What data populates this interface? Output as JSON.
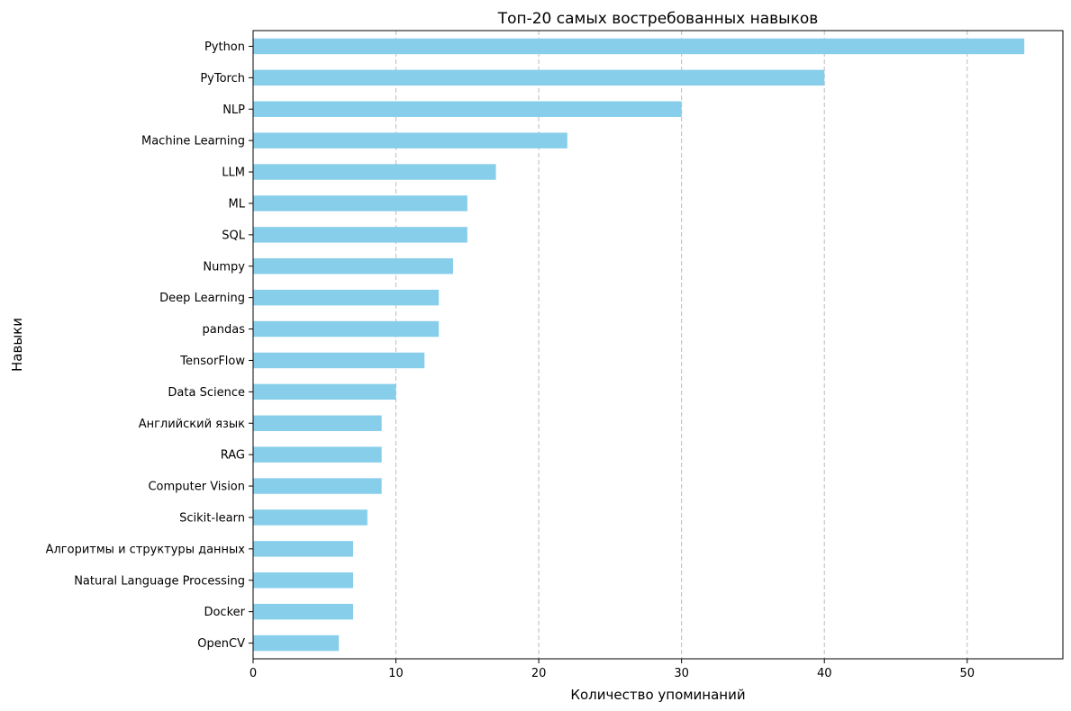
{
  "chart_data": {
    "type": "bar",
    "orientation": "horizontal",
    "title": "Топ-20 самых востребованных навыков",
    "xlabel": "Количество упоминаний",
    "ylabel": "Навыки",
    "categories": [
      "Python",
      "PyTorch",
      "NLP",
      "Machine Learning",
      "LLM",
      "ML",
      "SQL",
      "Numpy",
      "Deep Learning",
      "pandas",
      "TensorFlow",
      "Data Science",
      "Английский язык",
      "RAG",
      "Computer Vision",
      "Scikit-learn",
      "Алгоритмы и структуры данных",
      "Natural Language Processing",
      "Docker",
      "OpenCV"
    ],
    "values": [
      54,
      40,
      30,
      22,
      17,
      15,
      15,
      14,
      13,
      13,
      12,
      10,
      9,
      9,
      9,
      8,
      7,
      7,
      7,
      6
    ],
    "xlim": [
      0,
      56.7
    ],
    "xticks": [
      0,
      10,
      20,
      30,
      40,
      50
    ],
    "grid": "x-dashed",
    "bar_color": "#87ceeb",
    "legend": "none"
  }
}
